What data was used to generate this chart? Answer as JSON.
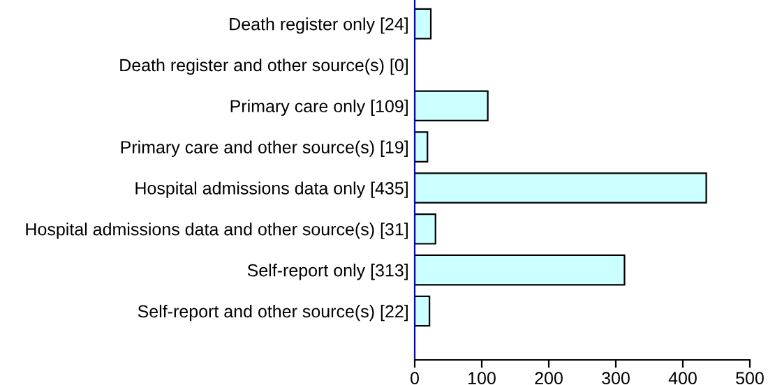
{
  "chart_data": {
    "type": "bar",
    "orientation": "horizontal",
    "categories": [
      "Death register only [24]",
      "Death register and other source(s) [0]",
      "Primary care only [109]",
      "Primary care and other source(s) [19]",
      "Hospital admissions data only [435]",
      "Hospital admissions data and other source(s) [31]",
      "Self-report only [313]",
      "Self-report and other source(s) [22]"
    ],
    "values": [
      24,
      0,
      109,
      19,
      435,
      31,
      313,
      22
    ],
    "color": "#ccffff",
    "xlim": [
      0,
      500
    ],
    "xticks": [
      0,
      100,
      200,
      300,
      400,
      500
    ],
    "grid": false,
    "legend": false
  }
}
